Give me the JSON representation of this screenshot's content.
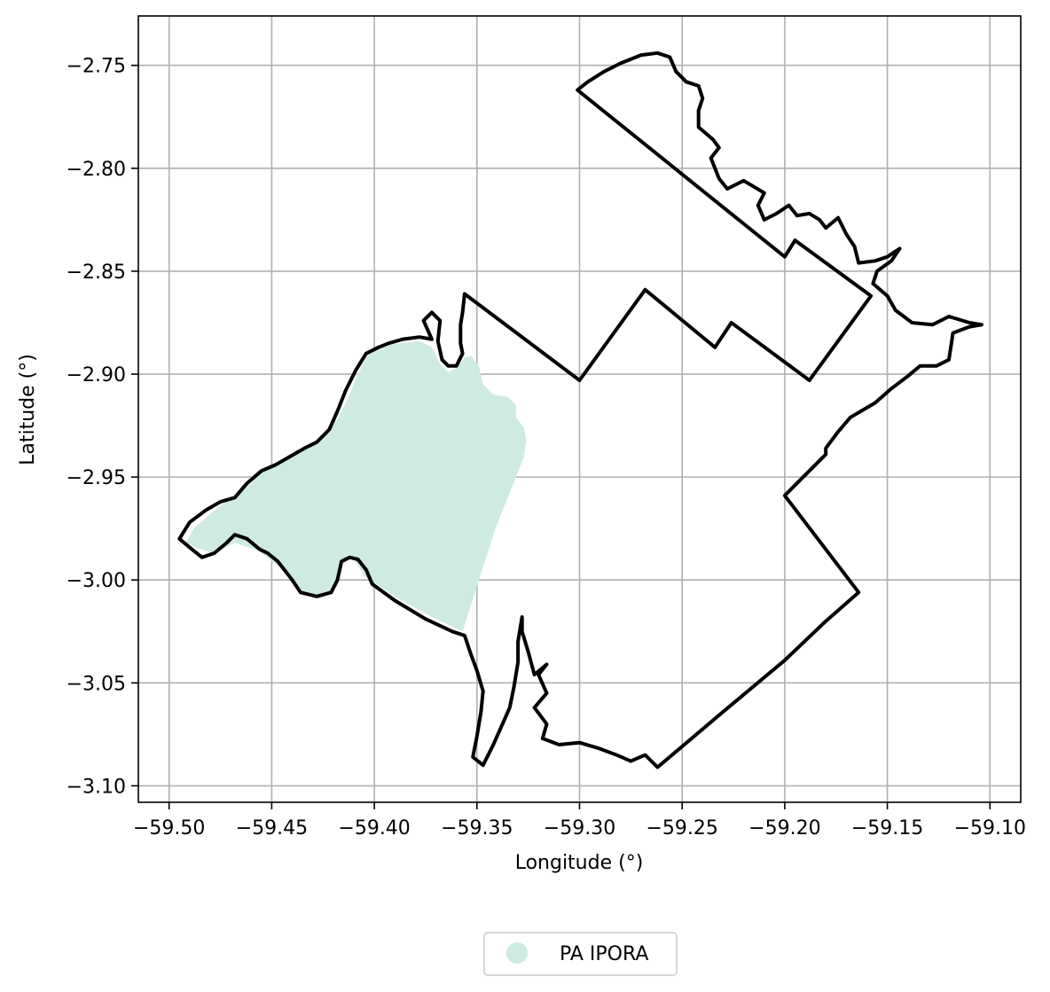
{
  "chart_data": {
    "type": "map",
    "xlabel": "Longitude (°)",
    "ylabel": "Latitude (°)",
    "xlim": [
      -59.515,
      -59.085
    ],
    "ylim": [
      -3.108,
      -2.726
    ],
    "xticks": [
      {
        "value": -59.5,
        "label": "−59.50"
      },
      {
        "value": -59.45,
        "label": "−59.45"
      },
      {
        "value": -59.4,
        "label": "−59.40"
      },
      {
        "value": -59.35,
        "label": "−59.35"
      },
      {
        "value": -59.3,
        "label": "−59.30"
      },
      {
        "value": -59.25,
        "label": "−59.25"
      },
      {
        "value": -59.2,
        "label": "−59.20"
      },
      {
        "value": -59.15,
        "label": "−59.15"
      },
      {
        "value": -59.1,
        "label": "−59.10"
      }
    ],
    "yticks": [
      {
        "value": -2.75,
        "label": "−2.75"
      },
      {
        "value": -2.8,
        "label": "−2.80"
      },
      {
        "value": -2.85,
        "label": "−2.85"
      },
      {
        "value": -2.9,
        "label": "−2.90"
      },
      {
        "value": -2.95,
        "label": "−2.95"
      },
      {
        "value": -3.0,
        "label": "−3.00"
      },
      {
        "value": -3.05,
        "label": "−3.05"
      },
      {
        "value": -3.1,
        "label": "−3.10"
      }
    ],
    "grid": true,
    "legend_position": "bottom-center",
    "series": [
      {
        "name": "PA IPORA",
        "color": "#cfebdf",
        "coords": [
          [
            -59.488,
            -2.975
          ],
          [
            -59.48,
            -2.968
          ],
          [
            -59.47,
            -2.96
          ],
          [
            -59.46,
            -2.953
          ],
          [
            -59.455,
            -2.946
          ],
          [
            -59.445,
            -2.942
          ],
          [
            -59.438,
            -2.937
          ],
          [
            -59.432,
            -2.935
          ],
          [
            -59.425,
            -2.93
          ],
          [
            -59.418,
            -2.922
          ],
          [
            -59.413,
            -2.912
          ],
          [
            -59.408,
            -2.9
          ],
          [
            -59.404,
            -2.892
          ],
          [
            -59.398,
            -2.887
          ],
          [
            -59.388,
            -2.885
          ],
          [
            -59.378,
            -2.884
          ],
          [
            -59.372,
            -2.887
          ],
          [
            -59.368,
            -2.895
          ],
          [
            -59.364,
            -2.899
          ],
          [
            -59.36,
            -2.897
          ],
          [
            -59.356,
            -2.892
          ],
          [
            -59.353,
            -2.891
          ],
          [
            -59.349,
            -2.896
          ],
          [
            -59.347,
            -2.905
          ],
          [
            -59.342,
            -2.91
          ],
          [
            -59.335,
            -2.911
          ],
          [
            -59.331,
            -2.915
          ],
          [
            -59.331,
            -2.921
          ],
          [
            -59.327,
            -2.926
          ],
          [
            -59.326,
            -2.932
          ],
          [
            -59.327,
            -2.94
          ],
          [
            -59.341,
            -2.975
          ],
          [
            -59.357,
            -3.025
          ],
          [
            -59.372,
            -3.018
          ],
          [
            -59.39,
            -3.008
          ],
          [
            -59.405,
            -2.998
          ],
          [
            -59.41,
            -2.99
          ],
          [
            -59.413,
            -2.988
          ],
          [
            -59.416,
            -2.993
          ],
          [
            -59.418,
            -3.003
          ],
          [
            -59.425,
            -3.008
          ],
          [
            -59.435,
            -3.006
          ],
          [
            -59.446,
            -2.994
          ],
          [
            -59.456,
            -2.986
          ],
          [
            -59.468,
            -2.982
          ],
          [
            -59.478,
            -2.987
          ],
          [
            -59.485,
            -2.985
          ],
          [
            -59.492,
            -2.982
          ]
        ]
      }
    ],
    "boundary_color": "#000000",
    "boundary": [
      [
        -59.495,
        -2.98
      ],
      [
        -59.49,
        -2.972
      ],
      [
        -59.482,
        -2.966
      ],
      [
        -59.475,
        -2.962
      ],
      [
        -59.468,
        -2.96
      ],
      [
        -59.462,
        -2.953
      ],
      [
        -59.455,
        -2.947
      ],
      [
        -59.448,
        -2.944
      ],
      [
        -59.441,
        -2.94
      ],
      [
        -59.434,
        -2.936
      ],
      [
        -59.428,
        -2.933
      ],
      [
        -59.422,
        -2.927
      ],
      [
        -59.418,
        -2.918
      ],
      [
        -59.414,
        -2.908
      ],
      [
        -59.409,
        -2.898
      ],
      [
        -59.404,
        -2.89
      ],
      [
        -59.398,
        -2.887
      ],
      [
        -59.393,
        -2.885
      ],
      [
        -59.386,
        -2.883
      ],
      [
        -59.378,
        -2.882
      ],
      [
        -59.372,
        -2.883
      ],
      [
        -59.376,
        -2.874
      ],
      [
        -59.372,
        -2.87
      ],
      [
        -59.368,
        -2.874
      ],
      [
        -59.369,
        -2.884
      ],
      [
        -59.367,
        -2.893
      ],
      [
        -59.364,
        -2.896
      ],
      [
        -59.36,
        -2.896
      ],
      [
        -59.357,
        -2.89
      ],
      [
        -59.358,
        -2.885
      ],
      [
        -59.358,
        -2.876
      ],
      [
        -59.357,
        -2.87
      ],
      [
        -59.356,
        -2.861
      ],
      [
        -59.3,
        -2.903
      ],
      [
        -59.268,
        -2.859
      ],
      [
        -59.234,
        -2.887
      ],
      [
        -59.226,
        -2.875
      ],
      [
        -59.188,
        -2.903
      ],
      [
        -59.158,
        -2.862
      ],
      [
        -59.195,
        -2.835
      ],
      [
        -59.2,
        -2.843
      ],
      [
        -59.301,
        -2.762
      ],
      [
        -59.296,
        -2.758
      ],
      [
        -59.288,
        -2.753
      ],
      [
        -59.28,
        -2.749
      ],
      [
        -59.27,
        -2.745
      ],
      [
        -59.262,
        -2.744
      ],
      [
        -59.256,
        -2.746
      ],
      [
        -59.253,
        -2.753
      ],
      [
        -59.248,
        -2.758
      ],
      [
        -59.242,
        -2.76
      ],
      [
        -59.24,
        -2.766
      ],
      [
        -59.242,
        -2.772
      ],
      [
        -59.242,
        -2.78
      ],
      [
        -59.235,
        -2.786
      ],
      [
        -59.232,
        -2.79
      ],
      [
        -59.236,
        -2.795
      ],
      [
        -59.232,
        -2.805
      ],
      [
        -59.228,
        -2.81
      ],
      [
        -59.22,
        -2.806
      ],
      [
        -59.215,
        -2.809
      ],
      [
        -59.21,
        -2.812
      ],
      [
        -59.213,
        -2.818
      ],
      [
        -59.21,
        -2.825
      ],
      [
        -59.204,
        -2.822
      ],
      [
        -59.198,
        -2.818
      ],
      [
        -59.194,
        -2.823
      ],
      [
        -59.188,
        -2.822
      ],
      [
        -59.183,
        -2.825
      ],
      [
        -59.18,
        -2.829
      ],
      [
        -59.174,
        -2.824
      ],
      [
        -59.17,
        -2.832
      ],
      [
        -59.166,
        -2.838
      ],
      [
        -59.164,
        -2.846
      ],
      [
        -59.156,
        -2.845
      ],
      [
        -59.15,
        -2.843
      ],
      [
        -59.144,
        -2.839
      ],
      [
        -59.148,
        -2.845
      ],
      [
        -59.155,
        -2.85
      ],
      [
        -59.157,
        -2.856
      ],
      [
        -59.15,
        -2.862
      ],
      [
        -59.146,
        -2.869
      ],
      [
        -59.138,
        -2.875
      ],
      [
        -59.128,
        -2.876
      ],
      [
        -59.12,
        -2.872
      ],
      [
        -59.11,
        -2.875
      ],
      [
        -59.104,
        -2.876
      ],
      [
        -59.11,
        -2.877
      ],
      [
        -59.118,
        -2.88
      ],
      [
        -59.12,
        -2.893
      ],
      [
        -59.126,
        -2.896
      ],
      [
        -59.134,
        -2.896
      ],
      [
        -59.14,
        -2.901
      ],
      [
        -59.148,
        -2.907
      ],
      [
        -59.156,
        -2.914
      ],
      [
        -59.168,
        -2.921
      ],
      [
        -59.174,
        -2.928
      ],
      [
        -59.18,
        -2.936
      ],
      [
        -59.18,
        -2.939
      ],
      [
        -59.2,
        -2.959
      ],
      [
        -59.164,
        -3.006
      ],
      [
        -59.18,
        -3.02
      ],
      [
        -59.2,
        -3.039
      ],
      [
        -59.23,
        -3.064
      ],
      [
        -59.262,
        -3.091
      ],
      [
        -59.268,
        -3.085
      ],
      [
        -59.275,
        -3.088
      ],
      [
        -59.282,
        -3.085
      ],
      [
        -59.29,
        -3.082
      ],
      [
        -59.3,
        -3.079
      ],
      [
        -59.31,
        -3.08
      ],
      [
        -59.318,
        -3.077
      ],
      [
        -59.316,
        -3.07
      ],
      [
        -59.322,
        -3.062
      ],
      [
        -59.316,
        -3.055
      ],
      [
        -59.32,
        -3.046
      ],
      [
        -59.316,
        -3.041
      ],
      [
        -59.322,
        -3.046
      ],
      [
        -59.325,
        -3.035
      ],
      [
        -59.328,
        -3.025
      ],
      [
        -59.328,
        -3.018
      ],
      [
        -59.33,
        -3.03
      ],
      [
        -59.33,
        -3.04
      ],
      [
        -59.332,
        -3.052
      ],
      [
        -59.334,
        -3.062
      ],
      [
        -59.338,
        -3.071
      ],
      [
        -59.342,
        -3.08
      ],
      [
        -59.347,
        -3.09
      ],
      [
        -59.352,
        -3.086
      ],
      [
        -59.35,
        -3.076
      ],
      [
        -59.348,
        -3.064
      ],
      [
        -59.347,
        -3.054
      ],
      [
        -59.35,
        -3.044
      ],
      [
        -59.353,
        -3.036
      ],
      [
        -59.356,
        -3.027
      ],
      [
        -59.362,
        -3.025
      ],
      [
        -59.375,
        -3.019
      ],
      [
        -59.39,
        -3.01
      ],
      [
        -59.401,
        -3.002
      ],
      [
        -59.404,
        -2.995
      ],
      [
        -59.408,
        -2.99
      ],
      [
        -59.412,
        -2.989
      ],
      [
        -59.416,
        -2.991
      ],
      [
        -59.418,
        -3.0
      ],
      [
        -59.421,
        -3.006
      ],
      [
        -59.428,
        -3.008
      ],
      [
        -59.436,
        -3.006
      ],
      [
        -59.44,
        -3.0
      ],
      [
        -59.447,
        -2.991
      ],
      [
        -59.452,
        -2.987
      ],
      [
        -59.456,
        -2.985
      ],
      [
        -59.462,
        -2.98
      ],
      [
        -59.468,
        -2.978
      ],
      [
        -59.472,
        -2.982
      ],
      [
        -59.478,
        -2.987
      ],
      [
        -59.484,
        -2.989
      ],
      [
        -59.489,
        -2.985
      ],
      [
        -59.495,
        -2.98
      ]
    ]
  },
  "legend": {
    "items": [
      {
        "label": "PA IPORA",
        "color": "#cfebdf"
      }
    ]
  }
}
